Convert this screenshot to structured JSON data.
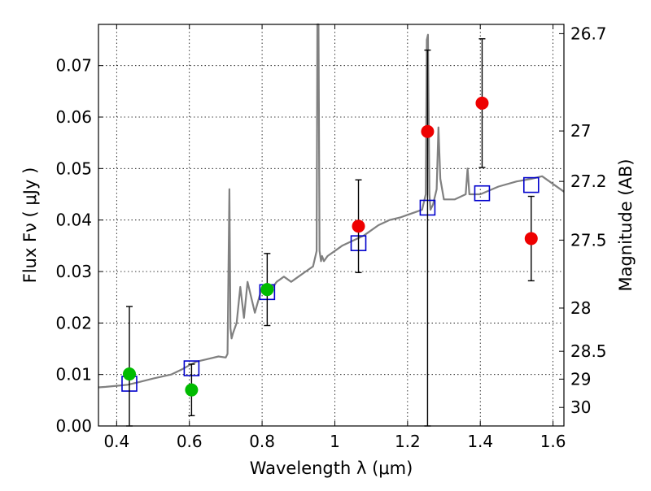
{
  "chart_data": {
    "type": "scatter",
    "xlabel": "Wavelength  λ (μm)",
    "ylabel": "Flux  Fν  ( μJy )",
    "y2label": "Magnitude (AB)",
    "xlim": [
      0.35,
      1.63
    ],
    "ylim": [
      0.0,
      0.078
    ],
    "grid": true,
    "x_ticks": [
      0.4,
      0.6,
      0.8,
      1.0,
      1.2,
      1.4,
      1.6
    ],
    "x_tick_labels": [
      "0.4",
      "0.6",
      "0.8",
      "1",
      "1.2",
      "1.4",
      "1.6"
    ],
    "y_ticks": [
      0.0,
      0.01,
      0.02,
      0.03,
      0.04,
      0.05,
      0.06,
      0.07
    ],
    "y_tick_labels": [
      "0.00",
      "0.01",
      "0.02",
      "0.03",
      "0.04",
      "0.05",
      "0.06",
      "0.07"
    ],
    "y2_ticks": [
      {
        "flux": 0.0762,
        "label": "26.7"
      },
      {
        "flux": 0.0573,
        "label": "27"
      },
      {
        "flux": 0.0475,
        "label": "27.2"
      },
      {
        "flux": 0.0361,
        "label": "27.5"
      },
      {
        "flux": 0.0229,
        "label": "28"
      },
      {
        "flux": 0.0145,
        "label": "28.5"
      },
      {
        "flux": 0.0091,
        "label": "29"
      },
      {
        "flux": 0.0036,
        "label": "30"
      }
    ],
    "series": [
      {
        "kind": "line",
        "color": "#808080",
        "x": [
          0.35,
          0.37,
          0.4,
          0.43,
          0.46,
          0.5,
          0.55,
          0.58,
          0.6,
          0.62,
          0.65,
          0.68,
          0.7,
          0.705,
          0.71,
          0.713,
          0.716,
          0.72,
          0.73,
          0.74,
          0.75,
          0.76,
          0.78,
          0.8,
          0.82,
          0.84,
          0.86,
          0.88,
          0.9,
          0.92,
          0.94,
          0.95,
          0.952,
          0.955,
          0.958,
          0.962,
          0.965,
          0.97,
          0.98,
          1.0,
          1.02,
          1.05,
          1.08,
          1.1,
          1.12,
          1.15,
          1.18,
          1.2,
          1.22,
          1.24,
          1.25,
          1.253,
          1.256,
          1.26,
          1.263,
          1.27,
          1.28,
          1.285,
          1.29,
          1.3,
          1.33,
          1.36,
          1.365,
          1.37,
          1.4,
          1.45,
          1.5,
          1.54,
          1.57,
          1.6,
          1.63
        ],
        "y": [
          0.0075,
          0.0076,
          0.0078,
          0.008,
          0.0085,
          0.0092,
          0.01,
          0.011,
          0.0118,
          0.0125,
          0.013,
          0.0135,
          0.0133,
          0.014,
          0.046,
          0.019,
          0.017,
          0.018,
          0.02,
          0.027,
          0.021,
          0.028,
          0.022,
          0.027,
          0.026,
          0.028,
          0.029,
          0.028,
          0.029,
          0.03,
          0.031,
          0.034,
          0.078,
          0.078,
          0.034,
          0.032,
          0.033,
          0.032,
          0.033,
          0.034,
          0.035,
          0.036,
          0.037,
          0.038,
          0.039,
          0.04,
          0.0405,
          0.041,
          0.0415,
          0.042,
          0.045,
          0.075,
          0.076,
          0.045,
          0.042,
          0.043,
          0.046,
          0.058,
          0.048,
          0.044,
          0.044,
          0.045,
          0.05,
          0.045,
          0.045,
          0.0465,
          0.0475,
          0.048,
          0.0485,
          0.047,
          0.0455
        ]
      },
      {
        "kind": "model-photometry",
        "color": "#0000cc",
        "x": [
          0.435,
          0.606,
          0.814,
          1.065,
          1.255,
          1.405,
          1.54
        ],
        "y": [
          0.0082,
          0.0112,
          0.026,
          0.0355,
          0.0424,
          0.0452,
          0.0468
        ]
      },
      {
        "kind": "observed-green",
        "color": "#00bb00",
        "x": [
          0.435,
          0.606,
          0.814
        ],
        "y": [
          0.0101,
          0.007,
          0.0265
        ],
        "err_low": [
          0.0101,
          0.005,
          0.007
        ],
        "err_high": [
          0.0131,
          0.005,
          0.007
        ]
      },
      {
        "kind": "observed-red",
        "color": "#ee0000",
        "x": [
          1.065,
          1.255,
          1.405,
          1.54
        ],
        "y": [
          0.0388,
          0.0572,
          0.0627,
          0.0364
        ],
        "err_low": [
          0.009,
          0.0572,
          0.0125,
          0.0082
        ],
        "err_high": [
          0.009,
          0.0158,
          0.0125,
          0.0082
        ]
      }
    ]
  }
}
